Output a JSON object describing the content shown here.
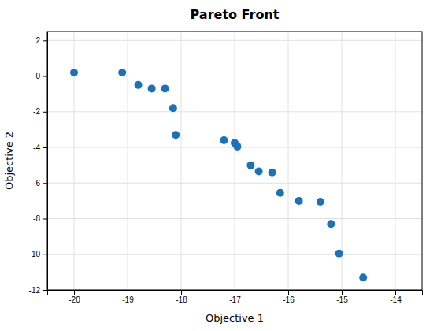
{
  "chart_data": {
    "type": "scatter",
    "title": "Pareto Front",
    "xlabel": "Objective 1",
    "ylabel": "Objective 2",
    "x": [
      -20.0,
      -19.1,
      -18.8,
      -18.55,
      -18.3,
      -18.15,
      -18.1,
      -17.2,
      -17.0,
      -16.95,
      -16.7,
      -16.55,
      -16.3,
      -16.15,
      -15.8,
      -15.4,
      -15.2,
      -15.05,
      -14.6
    ],
    "values": [
      0.2,
      0.2,
      -0.5,
      -0.7,
      -0.7,
      -1.8,
      -3.3,
      -3.6,
      -3.75,
      -3.95,
      -5.0,
      -5.35,
      -5.4,
      -6.55,
      -7.0,
      -7.05,
      -8.3,
      -9.95,
      -11.3
    ],
    "color": "#1a72bb",
    "xlim": [
      -20.5,
      -13.5
    ],
    "ylim": [
      -12,
      2.5
    ],
    "xticks": [
      -20,
      -19,
      -18,
      -17,
      -16,
      -15,
      -14
    ],
    "yticks": [
      -12,
      -10,
      -8,
      -6,
      -4,
      -2,
      0,
      2
    ],
    "grid": true
  }
}
